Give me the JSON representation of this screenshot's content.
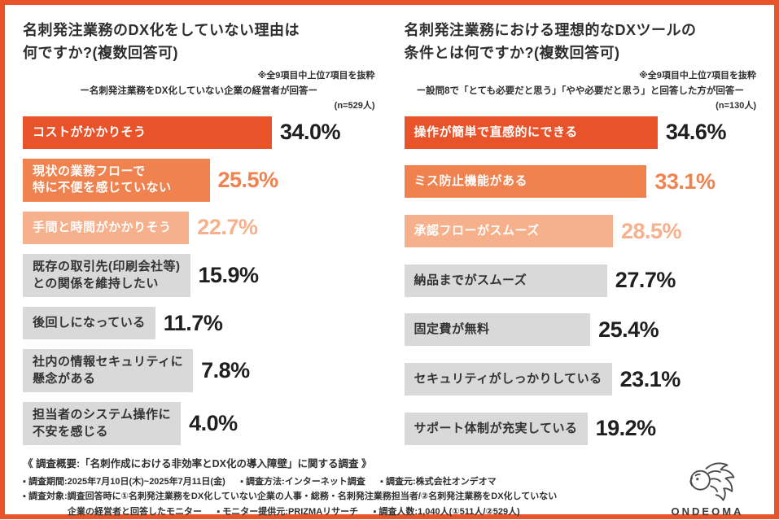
{
  "colors": {
    "accent": "#e9532a",
    "orange2": "#f0824f",
    "orange3": "#f7b08c",
    "graybar": "#d9d9d9"
  },
  "chart_data": [
    {
      "type": "bar",
      "orientation": "horizontal",
      "title": "名刺発注業務のDX化をしていない理由は\n何ですか?(複数回答可)",
      "note": "※全9項目中上位7項目を抜粋",
      "subtitle": "ー名刺発注業務をDX化していない企業の経営者が回答ー",
      "sample": "(n=529人)",
      "unit": "%",
      "xlim": [
        0,
        40
      ],
      "items": [
        {
          "label": "コストがかかりそう",
          "value": 34.0,
          "display": "34.0%"
        },
        {
          "label": "現状の業務フローで\n特に不便を感じていない",
          "value": 25.5,
          "display": "25.5%"
        },
        {
          "label": "手間と時間がかかりそう",
          "value": 22.7,
          "display": "22.7%"
        },
        {
          "label": "既存の取引先(印刷会社等)\nとの関係を維持したい",
          "value": 15.9,
          "display": "15.9%"
        },
        {
          "label": "後回しになっている",
          "value": 11.7,
          "display": "11.7%"
        },
        {
          "label": "社内の情報セキュリティに\n懸念がある",
          "value": 7.8,
          "display": "7.8%"
        },
        {
          "label": "担当者のシステム操作に\n不安を感じる",
          "value": 4.0,
          "display": "4.0%"
        }
      ]
    },
    {
      "type": "bar",
      "orientation": "horizontal",
      "title": "名刺発注業務における理想的なDXツールの\n条件とは何ですか?(複数回答可)",
      "note": "※全9項目中上位7項目を抜粋",
      "subtitle": "ー設問8で「とても必要だと思う」「やや必要だと思う」と回答した方が回答ー",
      "sample": "(n=130人)",
      "unit": "%",
      "xlim": [
        0,
        40
      ],
      "items": [
        {
          "label": "操作が簡単で直感的にできる",
          "value": 34.6,
          "display": "34.6%"
        },
        {
          "label": "ミス防止機能がある",
          "value": 33.1,
          "display": "33.1%"
        },
        {
          "label": "承認フローがスムーズ",
          "value": 28.5,
          "display": "28.5%"
        },
        {
          "label": "納品までがスムーズ",
          "value": 27.7,
          "display": "27.7%"
        },
        {
          "label": "固定費が無料",
          "value": 25.4,
          "display": "25.4%"
        },
        {
          "label": "セキュリティがしっかりしている",
          "value": 23.1,
          "display": "23.1%"
        },
        {
          "label": "サポート体制が充実している",
          "value": 19.2,
          "display": "19.2%"
        }
      ]
    }
  ],
  "footer": {
    "heading": "《 調査概要:「名刺作成における非効率とDX化の導入障壁」に関する調査 》",
    "line1": "▪ 調査期間:2025年7月10日(木)~2025年7月11日(金)      ▪ 調査方法:インターネット調査      ▪ 調査元:株式会社オンデオマ",
    "line2": "▪ 調査対象:調査回答時に①名刺発注業務をDX化していない企業の人事・総務・名刺発注業務担当者/②名刺発注業務をDX化していない",
    "line3": "                  企業の経営者と回答したモニター      ▪ モニター提供元:PRIZMAリサーチ      ▪ 調査人数:1,040人(①511人/②529人)",
    "logo_text": "ONDEOMA"
  }
}
